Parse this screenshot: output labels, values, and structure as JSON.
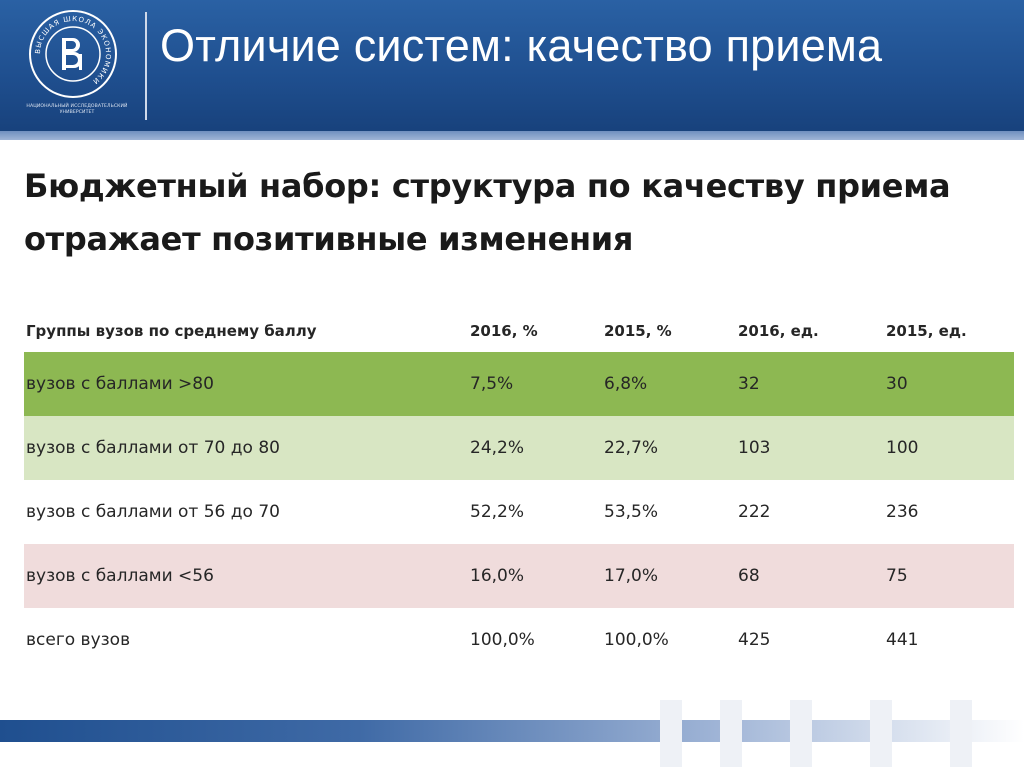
{
  "header": {
    "title": "Отличие систем: качество приема",
    "logo_text": "НАЦИОНАЛЬНЫЙ ИССЛЕДОВАТЕЛЬСКИЙ УНИВЕРСИТЕТ",
    "logo_ring_text": "ВЫСШАЯ ШКОЛА ЭКОНОМИКИ"
  },
  "headline": {
    "line1": "Бюджетный набор: структура по качеству приема",
    "line2": "отражает позитивные изменения"
  },
  "table": {
    "columns": [
      "Группы вузов по среднему баллу",
      "2016, %",
      "2015, %",
      "2016,  ед.",
      "2015, ед."
    ],
    "rows": [
      {
        "cells": [
          "вузов с баллами >80",
          "7,5%",
          "6,8%",
          "32",
          "30"
        ],
        "color": "#8db852"
      },
      {
        "cells": [
          "вузов с баллами от 70 до 80",
          "24,2%",
          "22,7%",
          "103",
          "100"
        ],
        "color": "#d8e6c3"
      },
      {
        "cells": [
          "вузов с баллами от 56 до 70",
          "52,2%",
          "53,5%",
          "222",
          "236"
        ],
        "color": "#ffffff"
      },
      {
        "cells": [
          "вузов с баллами <56",
          "16,0%",
          "17,0%",
          "68",
          "75"
        ],
        "color": "#f0dcdc"
      },
      {
        "cells": [
          "всего вузов",
          "100,0%",
          "100,0%",
          "425",
          "441"
        ],
        "color": "#ffffff"
      }
    ]
  },
  "colors": {
    "header_blue": "#1f4f8f",
    "row_top": "#8db852",
    "row_good": "#d8e6c3",
    "row_low": "#f0dcdc"
  }
}
